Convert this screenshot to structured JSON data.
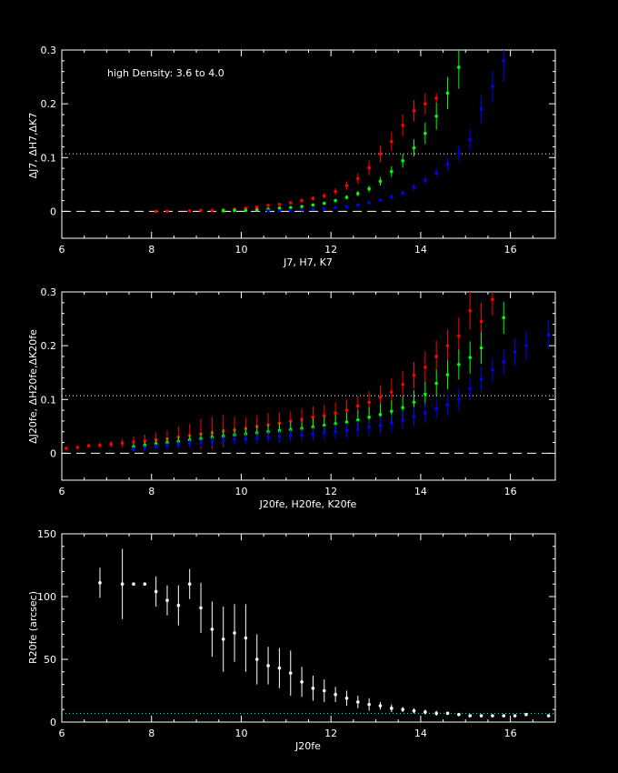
{
  "chart_data": [
    {
      "type": "scatter",
      "annotation": "high Density: 3.6 to 4.0",
      "xlabel": "J7, H7, K7",
      "ylabel": "ΔJ7, ΔH7,ΔK7",
      "xlim": [
        6,
        17
      ],
      "ylim": [
        -0.05,
        0.3
      ],
      "x_ticks": [
        "6",
        "8",
        "10",
        "12",
        "14",
        "16"
      ],
      "y_ticks": [
        "0",
        "0.1",
        "0.2",
        "0.3"
      ],
      "dotted_line_y": 0.107,
      "dashed_line_y": 0,
      "colors": {
        "red": "#ff0000",
        "green": "#00ff00",
        "blue": "#0000ff"
      },
      "series": [
        {
          "color": "red",
          "x": [
            8.1,
            8.35,
            8.85,
            9.1,
            9.35,
            9.6,
            9.85,
            10.1,
            10.35,
            10.6,
            10.85,
            11.1,
            11.35,
            11.6,
            11.85,
            12.1,
            12.35,
            12.6,
            12.85,
            13.1,
            13.35,
            13.6,
            13.85,
            14.1,
            14.35
          ],
          "y": [
            0.0,
            0.0,
            0.001,
            0.002,
            0.002,
            0.003,
            0.004,
            0.006,
            0.008,
            0.011,
            0.013,
            0.016,
            0.02,
            0.024,
            0.029,
            0.037,
            0.048,
            0.061,
            0.081,
            0.107,
            0.13,
            0.16,
            0.187,
            0.2,
            0.21
          ],
          "err": [
            0.001,
            0.001,
            0.001,
            0.001,
            0.001,
            0.001,
            0.001,
            0.002,
            0.002,
            0.002,
            0.003,
            0.003,
            0.004,
            0.004,
            0.005,
            0.006,
            0.008,
            0.01,
            0.014,
            0.016,
            0.018,
            0.02,
            0.02,
            0.02,
            0.01
          ]
        },
        {
          "color": "green",
          "x": [
            9.6,
            9.85,
            10.1,
            10.35,
            10.6,
            10.85,
            11.1,
            11.35,
            11.6,
            11.85,
            12.1,
            12.35,
            12.6,
            12.85,
            13.1,
            13.35,
            13.6,
            13.85,
            14.1,
            14.35,
            14.6,
            14.85
          ],
          "y": [
            0.001,
            0.002,
            0.002,
            0.003,
            0.004,
            0.006,
            0.007,
            0.009,
            0.012,
            0.015,
            0.02,
            0.026,
            0.033,
            0.042,
            0.056,
            0.074,
            0.094,
            0.118,
            0.145,
            0.177,
            0.22,
            0.268
          ],
          "err": [
            0.001,
            0.001,
            0.001,
            0.001,
            0.001,
            0.001,
            0.002,
            0.002,
            0.002,
            0.003,
            0.003,
            0.004,
            0.005,
            0.006,
            0.008,
            0.01,
            0.013,
            0.016,
            0.02,
            0.025,
            0.03,
            0.04
          ]
        },
        {
          "color": "blue",
          "x": [
            10.6,
            10.85,
            11.1,
            11.35,
            11.6,
            11.85,
            12.1,
            12.35,
            12.6,
            12.85,
            13.1,
            13.35,
            13.6,
            13.85,
            14.1,
            14.35,
            14.6,
            14.85,
            15.1,
            15.35,
            15.6,
            15.85
          ],
          "y": [
            0.001,
            0.001,
            0.002,
            0.003,
            0.004,
            0.005,
            0.007,
            0.009,
            0.012,
            0.016,
            0.021,
            0.027,
            0.034,
            0.045,
            0.058,
            0.072,
            0.088,
            0.108,
            0.133,
            0.19,
            0.232,
            0.28
          ],
          "err": [
            0.001,
            0.001,
            0.001,
            0.001,
            0.001,
            0.001,
            0.001,
            0.002,
            0.002,
            0.002,
            0.003,
            0.004,
            0.005,
            0.006,
            0.007,
            0.009,
            0.012,
            0.015,
            0.02,
            0.025,
            0.03,
            0.04
          ]
        }
      ]
    },
    {
      "type": "scatter",
      "xlabel": "J20fe, H20fe, K20fe",
      "ylabel": "ΔJ20fe, ΔH20fe,ΔK20fe",
      "xlim": [
        6,
        17
      ],
      "ylim": [
        -0.05,
        0.3
      ],
      "x_ticks": [
        "6",
        "8",
        "10",
        "12",
        "14",
        "16"
      ],
      "y_ticks": [
        "0",
        "0.1",
        "0.2",
        "0.3"
      ],
      "dotted_line_y": 0.107,
      "dashed_line_y": 0,
      "colors": {
        "red": "#ff0000",
        "green": "#00ff00",
        "blue": "#0000ff"
      },
      "series": [
        {
          "color": "red",
          "x": [
            6.1,
            6.35,
            6.6,
            6.85,
            7.1,
            7.35,
            7.6,
            7.85,
            8.1,
            8.35,
            8.6,
            8.85,
            9.1,
            9.35,
            9.6,
            9.85,
            10.1,
            10.35,
            10.6,
            10.85,
            11.1,
            11.35,
            11.6,
            11.85,
            12.1,
            12.35,
            12.6,
            12.85,
            13.1,
            13.35,
            13.6,
            13.85,
            14.1,
            14.35,
            14.6,
            14.85,
            15.1,
            15.35,
            15.6
          ],
          "y": [
            0.009,
            0.011,
            0.014,
            0.015,
            0.017,
            0.019,
            0.021,
            0.023,
            0.025,
            0.027,
            0.03,
            0.033,
            0.036,
            0.038,
            0.041,
            0.043,
            0.046,
            0.05,
            0.053,
            0.056,
            0.06,
            0.063,
            0.067,
            0.07,
            0.075,
            0.08,
            0.088,
            0.095,
            0.104,
            0.114,
            0.128,
            0.145,
            0.16,
            0.18,
            0.2,
            0.218,
            0.265,
            0.245,
            0.286
          ],
          "err": [
            0.003,
            0.003,
            0.004,
            0.005,
            0.006,
            0.008,
            0.01,
            0.012,
            0.014,
            0.016,
            0.02,
            0.022,
            0.028,
            0.03,
            0.03,
            0.025,
            0.02,
            0.02,
            0.022,
            0.02,
            0.018,
            0.02,
            0.02,
            0.02,
            0.02,
            0.02,
            0.018,
            0.02,
            0.022,
            0.025,
            0.025,
            0.025,
            0.03,
            0.03,
            0.03,
            0.035,
            0.035,
            0.035,
            0.03
          ]
        },
        {
          "color": "green",
          "x": [
            7.6,
            7.85,
            8.1,
            8.35,
            8.6,
            8.85,
            9.1,
            9.35,
            9.6,
            9.85,
            10.1,
            10.35,
            10.6,
            10.85,
            11.1,
            11.35,
            11.6,
            11.85,
            12.1,
            12.35,
            12.6,
            12.85,
            13.1,
            13.35,
            13.6,
            13.85,
            14.1,
            14.35,
            14.6,
            14.85,
            15.1,
            15.35,
            15.85
          ],
          "y": [
            0.012,
            0.015,
            0.018,
            0.02,
            0.022,
            0.025,
            0.027,
            0.03,
            0.032,
            0.034,
            0.036,
            0.038,
            0.04,
            0.042,
            0.044,
            0.046,
            0.049,
            0.052,
            0.055,
            0.058,
            0.062,
            0.067,
            0.072,
            0.078,
            0.085,
            0.095,
            0.11,
            0.13,
            0.146,
            0.165,
            0.178,
            0.196,
            0.252
          ],
          "err": [
            0.006,
            0.007,
            0.008,
            0.009,
            0.01,
            0.01,
            0.011,
            0.012,
            0.013,
            0.013,
            0.013,
            0.014,
            0.014,
            0.015,
            0.015,
            0.016,
            0.016,
            0.017,
            0.017,
            0.018,
            0.018,
            0.019,
            0.02,
            0.02,
            0.021,
            0.022,
            0.023,
            0.025,
            0.027,
            0.028,
            0.03,
            0.03,
            0.03
          ]
        },
        {
          "color": "blue",
          "x": [
            7.6,
            7.85,
            8.1,
            8.35,
            8.6,
            8.85,
            9.1,
            9.35,
            9.6,
            9.85,
            10.1,
            10.35,
            10.6,
            10.85,
            11.1,
            11.35,
            11.6,
            11.85,
            12.1,
            12.35,
            12.6,
            12.85,
            13.1,
            13.35,
            13.6,
            13.85,
            14.1,
            14.35,
            14.6,
            14.85,
            15.1,
            15.35,
            15.6,
            15.85,
            16.1,
            16.35,
            16.85
          ],
          "y": [
            0.008,
            0.01,
            0.012,
            0.014,
            0.016,
            0.018,
            0.02,
            0.022,
            0.024,
            0.026,
            0.027,
            0.028,
            0.03,
            0.031,
            0.033,
            0.034,
            0.036,
            0.038,
            0.04,
            0.042,
            0.045,
            0.048,
            0.052,
            0.056,
            0.062,
            0.068,
            0.075,
            0.083,
            0.09,
            0.1,
            0.12,
            0.138,
            0.155,
            0.17,
            0.188,
            0.2,
            0.22
          ],
          "err": [
            0.004,
            0.005,
            0.006,
            0.006,
            0.007,
            0.008,
            0.008,
            0.009,
            0.009,
            0.01,
            0.01,
            0.011,
            0.011,
            0.012,
            0.012,
            0.012,
            0.013,
            0.013,
            0.014,
            0.014,
            0.015,
            0.015,
            0.016,
            0.016,
            0.017,
            0.018,
            0.018,
            0.019,
            0.02,
            0.021,
            0.022,
            0.022,
            0.023,
            0.024,
            0.025,
            0.026,
            0.028
          ]
        }
      ]
    },
    {
      "type": "scatter",
      "xlabel": "J20fe",
      "ylabel": "R20fe (arcsec)",
      "xlim": [
        6,
        17
      ],
      "ylim": [
        0,
        150
      ],
      "x_ticks": [
        "6",
        "8",
        "10",
        "12",
        "14",
        "16"
      ],
      "y_ticks": [
        "0",
        "50",
        "100",
        "150"
      ],
      "dotted_line_y": 7,
      "colors": {
        "points": "#ffffff",
        "dotted_line": "#00ffff"
      },
      "series": [
        {
          "color": "white",
          "x": [
            6.85,
            7.35,
            7.6,
            7.85,
            8.1,
            8.35,
            8.6,
            8.85,
            9.1,
            9.35,
            9.6,
            9.85,
            10.1,
            10.35,
            10.6,
            10.85,
            11.1,
            11.35,
            11.6,
            11.85,
            12.1,
            12.35,
            12.6,
            12.85,
            13.1,
            13.35,
            13.6,
            13.85,
            14.1,
            14.35,
            14.6,
            14.85,
            15.1,
            15.35,
            15.6,
            15.85,
            16.1,
            16.35,
            16.85
          ],
          "y": [
            111,
            110,
            110,
            110,
            104,
            97,
            93,
            110,
            91,
            74,
            66,
            71,
            67,
            50,
            45,
            43,
            39,
            32,
            27,
            25,
            22,
            19,
            16,
            14,
            13,
            11,
            10,
            9,
            8,
            7,
            7,
            6,
            5,
            5,
            5,
            5,
            5,
            6,
            5
          ],
          "err": [
            12,
            28,
            1,
            1,
            12,
            12,
            16,
            12,
            20,
            22,
            26,
            23,
            27,
            20,
            15,
            16,
            18,
            12,
            10,
            9,
            6,
            6,
            5,
            5,
            3,
            3,
            2,
            2,
            2,
            2,
            1,
            1,
            1,
            1,
            1,
            1,
            1,
            1,
            1
          ]
        }
      ]
    }
  ]
}
